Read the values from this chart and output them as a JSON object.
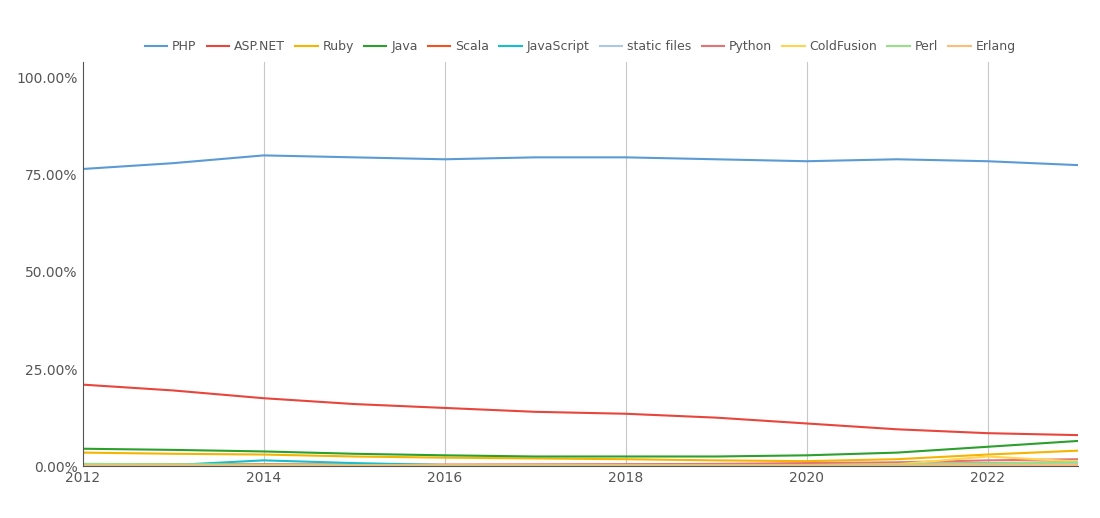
{
  "years": [
    2012,
    2013,
    2014,
    2015,
    2016,
    2017,
    2018,
    2019,
    2020,
    2021,
    2022,
    2023
  ],
  "series": {
    "PHP": {
      "color": "#5b9bd5",
      "values": [
        76.5,
        78.0,
        80.0,
        79.5,
        79.0,
        79.5,
        79.5,
        79.0,
        78.5,
        79.0,
        78.5,
        77.5
      ]
    },
    "ASP.NET": {
      "color": "#e8453c",
      "values": [
        21.0,
        19.5,
        17.5,
        16.0,
        15.0,
        14.0,
        13.5,
        12.5,
        11.0,
        9.5,
        8.5,
        8.0
      ]
    },
    "Ruby": {
      "color": "#f4b400",
      "values": [
        3.5,
        3.2,
        3.0,
        2.5,
        2.2,
        2.0,
        1.8,
        1.5,
        1.3,
        1.8,
        3.0,
        4.0
      ]
    },
    "Java": {
      "color": "#2ca02c",
      "values": [
        4.5,
        4.2,
        3.8,
        3.2,
        2.8,
        2.5,
        2.5,
        2.5,
        2.8,
        3.5,
        5.0,
        6.5
      ]
    },
    "Scala": {
      "color": "#f4511e",
      "values": [
        0.5,
        0.5,
        0.5,
        0.4,
        0.4,
        0.4,
        0.4,
        0.4,
        0.4,
        0.5,
        0.8,
        1.0
      ]
    },
    "JavaScript": {
      "color": "#17becf",
      "values": [
        0.3,
        0.3,
        1.5,
        0.8,
        0.3,
        0.3,
        0.3,
        0.3,
        0.3,
        0.4,
        0.6,
        0.8
      ]
    },
    "static files": {
      "color": "#aec7e8",
      "values": [
        0.2,
        0.2,
        0.2,
        0.2,
        0.2,
        0.2,
        0.3,
        0.4,
        0.4,
        0.5,
        0.7,
        0.8
      ]
    },
    "Python": {
      "color": "#e57373",
      "values": [
        0.2,
        0.2,
        0.2,
        0.2,
        0.3,
        0.4,
        0.5,
        0.6,
        0.8,
        1.0,
        1.5,
        1.8
      ]
    },
    "ColdFusion": {
      "color": "#ffd54f",
      "values": [
        0.4,
        0.4,
        0.3,
        0.3,
        0.3,
        0.3,
        0.3,
        0.3,
        0.3,
        0.5,
        2.5,
        1.2
      ]
    },
    "Perl": {
      "color": "#98df8a",
      "values": [
        0.6,
        0.5,
        0.4,
        0.3,
        0.3,
        0.3,
        0.3,
        0.3,
        0.3,
        0.4,
        0.7,
        1.0
      ]
    },
    "Erlang": {
      "color": "#ffbb78",
      "values": [
        0.15,
        0.15,
        0.15,
        0.15,
        0.15,
        0.15,
        0.15,
        0.15,
        0.15,
        0.15,
        0.2,
        0.3
      ]
    }
  },
  "yticks": [
    0,
    25,
    50,
    75,
    100
  ],
  "ytick_labels": [
    "0.00%",
    "25.00%",
    "50.00%",
    "75.00%",
    "100.00%"
  ],
  "xticks": [
    2012,
    2014,
    2016,
    2018,
    2020,
    2022
  ],
  "vlines": [
    2014,
    2016,
    2018,
    2020,
    2022
  ],
  "background_color": "#ffffff",
  "grid_color": "#c8c8c8",
  "ylim": [
    0,
    104
  ],
  "figsize": [
    11.0,
    5.18
  ],
  "dpi": 100
}
